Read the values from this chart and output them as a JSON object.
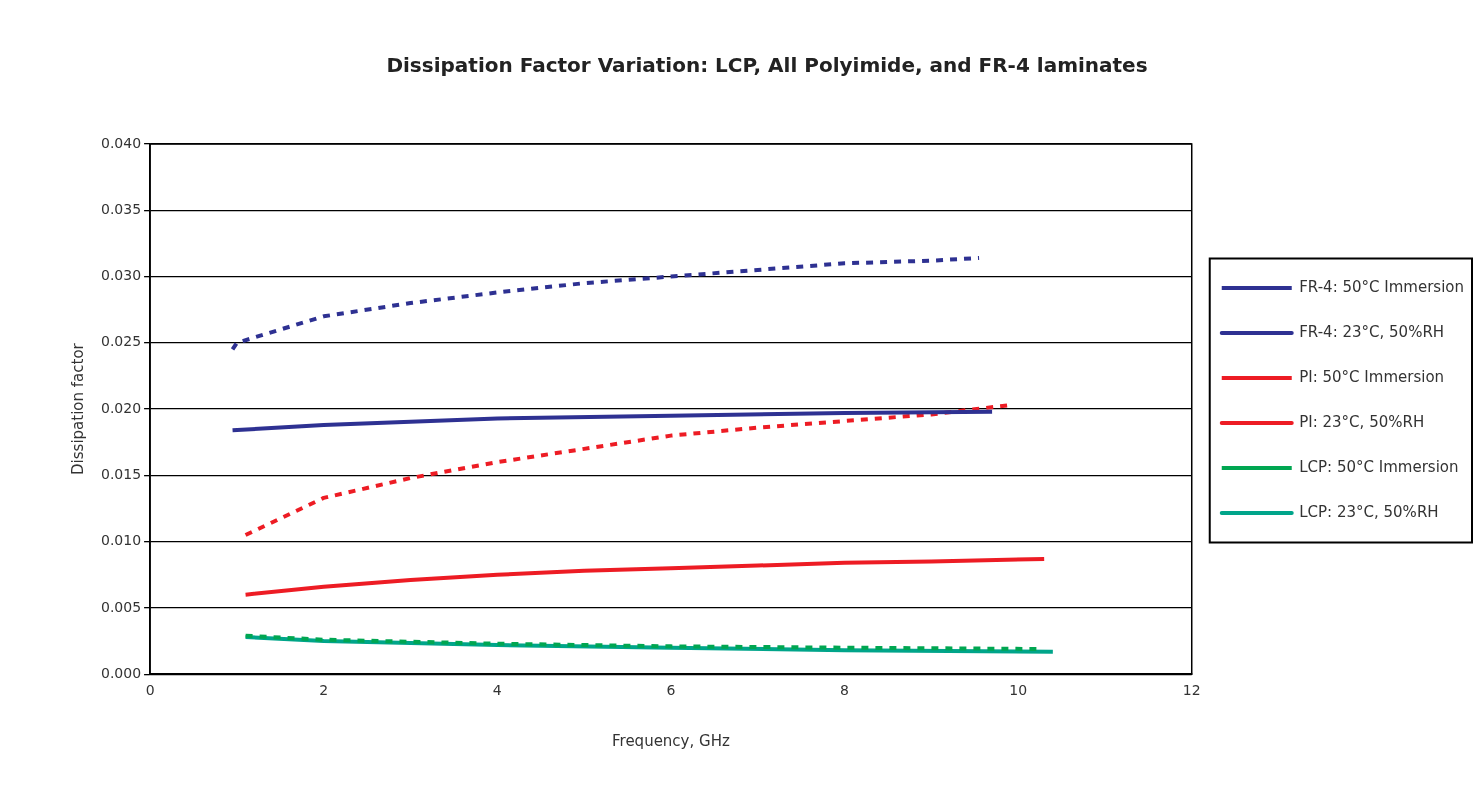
{
  "chart_data": {
    "type": "line",
    "title": "Dissipation Factor Variation: LCP, All Polyimide, and FR-4 laminates",
    "xlabel": "Frequency, GHz",
    "ylabel": "Dissipation factor",
    "xlim": [
      0,
      12
    ],
    "xticks": [
      0,
      2,
      4,
      6,
      8,
      10,
      12
    ],
    "ylim": [
      0,
      0.04
    ],
    "yticks": [
      {
        "value": 0,
        "label": "0.000"
      },
      {
        "value": 0.005,
        "label": "0.005"
      },
      {
        "value": 0.01,
        "label": "0.010"
      },
      {
        "value": 0.015,
        "label": "0.015"
      },
      {
        "value": 0.02,
        "label": "0.020"
      },
      {
        "value": 0.025,
        "label": "0.025"
      },
      {
        "value": 0.03,
        "label": "0.030"
      },
      {
        "value": 0.035,
        "label": "0.035"
      },
      {
        "value": 0.04,
        "label": "0.040"
      }
    ],
    "grid": "y",
    "legend": "right",
    "marker": "none",
    "series": [
      {
        "name": "FR-4: 50°C Immersion",
        "color": "#2e3192",
        "line_style": "dashed",
        "x": [
          0.95,
          1,
          2,
          3,
          4,
          5,
          6,
          7,
          8,
          9,
          9.55
        ],
        "values": [
          0.0245,
          0.025,
          0.027,
          0.028,
          0.0288,
          0.0295,
          0.03,
          0.0305,
          0.031,
          0.0312,
          0.0314
        ]
      },
      {
        "name": "FR-4: 23°C, 50%RH",
        "color": "#2e3192",
        "line_style": "solid",
        "x": [
          0.95,
          2,
          4,
          6,
          8,
          9.7
        ],
        "values": [
          0.0184,
          0.0188,
          0.0193,
          0.0195,
          0.0197,
          0.0198
        ]
      },
      {
        "name": "PI: 50°C Immersion",
        "color": "#ed1c24",
        "line_style": "dashed",
        "x": [
          1.1,
          2,
          3,
          4,
          5,
          6,
          7,
          8,
          9,
          9.9
        ],
        "values": [
          0.0105,
          0.0133,
          0.0148,
          0.016,
          0.017,
          0.018,
          0.0186,
          0.0191,
          0.0196,
          0.0203
        ]
      },
      {
        "name": "PI: 23°C, 50%RH",
        "color": "#ed1c24",
        "line_style": "solid",
        "x": [
          1.1,
          2,
          3,
          4,
          5,
          6,
          7,
          8,
          9,
          10.3
        ],
        "values": [
          0.006,
          0.0066,
          0.0071,
          0.0075,
          0.0078,
          0.008,
          0.0082,
          0.0084,
          0.0085,
          0.0087
        ]
      },
      {
        "name": "LCP: 50°C Immersion",
        "color": "#00a651",
        "line_style": "dashed",
        "x": [
          1.1,
          2,
          4,
          6,
          8,
          10.25
        ],
        "values": [
          0.0029,
          0.0026,
          0.0023,
          0.0021,
          0.002,
          0.0019
        ]
      },
      {
        "name": "LCP: 23°C, 50%RH",
        "color": "#00a58a",
        "line_style": "solid",
        "x": [
          1.1,
          2,
          4,
          6,
          8,
          10.4
        ],
        "values": [
          0.0028,
          0.0025,
          0.0022,
          0.002,
          0.0018,
          0.0017
        ]
      }
    ]
  }
}
